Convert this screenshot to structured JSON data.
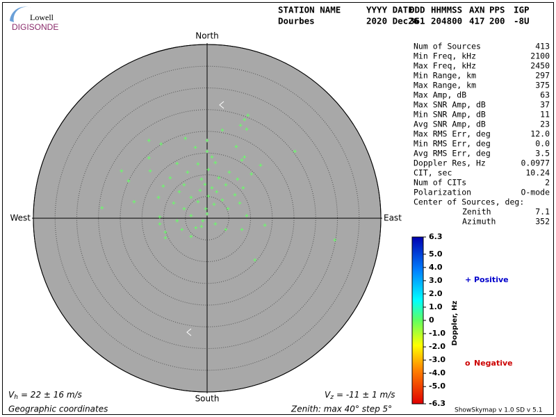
{
  "logo": {
    "line1": "Lowell",
    "line2": "DIGISONDE"
  },
  "header": {
    "labels": [
      "STATION NAME",
      "YYYY DATE",
      "DDD",
      "HHMMSS",
      "AXN",
      "PPS",
      "IGP"
    ],
    "values": [
      "Dourbes",
      "2020 Dec26",
      "361",
      "204800",
      "417",
      "200",
      "-8U"
    ]
  },
  "stats": [
    [
      "Num of Sources",
      "413"
    ],
    [
      "Min Freq, kHz",
      "2100"
    ],
    [
      "Max Freq, kHz",
      "2450"
    ],
    [
      "Min Range, km",
      "297"
    ],
    [
      "Max Range, km",
      "375"
    ],
    [
      "Max Amp, dB",
      "63"
    ],
    [
      "Max SNR Amp, dB",
      "37"
    ],
    [
      "Min SNR Amp, dB",
      "11"
    ],
    [
      "Avg SNR Amp, dB",
      "23"
    ],
    [
      "Max RMS Err, deg",
      "12.0"
    ],
    [
      "Min RMS Err, deg",
      "0.0"
    ],
    [
      "Avg RMS Err, deg",
      "3.5"
    ],
    [
      "Doppler Res, Hz",
      "0.0977"
    ],
    [
      "CIT, sec",
      "10.24"
    ],
    [
      "Num of CITs",
      "2"
    ],
    [
      "Polarization",
      "O-mode"
    ]
  ],
  "center": {
    "title": "Center of Sources, deg:",
    "rows": [
      [
        "Zenith",
        "7.1"
      ],
      [
        "Azimuth",
        "352"
      ]
    ]
  },
  "footer": {
    "vh": {
      "symbol": "V",
      "sub": "h",
      "text": "= 22 ± 16 m/s"
    },
    "vz": {
      "symbol": "V",
      "sub": "z",
      "text": "= -11 ± 1 m/s"
    },
    "coords": "Geographic coordinates",
    "zenith": "Zenith: max 40°  step 5°",
    "version": "ShowSkymap v 1.0   SD v 5.1"
  },
  "chart_data": {
    "type": "scatter",
    "compass": {
      "north": "North",
      "south": "South",
      "east": "East",
      "west": "West"
    },
    "xlim": [
      -40,
      40
    ],
    "ylim": [
      -40,
      40
    ],
    "rticks": [
      5,
      10,
      15,
      20,
      25,
      30,
      35,
      40
    ],
    "color": "#66ff66",
    "x": [
      9.4,
      8.6,
      7.7,
      3.5,
      9.1,
      -13.4,
      -5.0,
      0,
      -10.6,
      20.2,
      -2.7,
      6.7,
      0,
      -13.4,
      1.1,
      8,
      8.6,
      -6.9,
      -2.1,
      1.9,
      -19.7,
      12.3,
      -13.1,
      -4.5,
      0.3,
      5.1,
      10.2,
      -18.1,
      -8.5,
      -1.3,
      2.7,
      7,
      -10.1,
      -5.3,
      -0.5,
      1.1,
      4.3,
      8.3,
      -6.4,
      -1.6,
      2.2,
      6.4,
      -16.8,
      -11.2,
      -3.7,
      0.3,
      3.5,
      -7.7,
      -2.1,
      1.6,
      7.5,
      -24.2,
      -5.3,
      -0.3,
      4.8,
      -10.9,
      -3.7,
      0,
      9.1,
      -6.9,
      -1,
      13.3,
      -10.9,
      -1.3,
      1.9,
      8,
      -9.6,
      -2.6,
      4.3,
      -3.7,
      -9.6,
      29.4,
      11,
      -5.8
    ],
    "values": [
      23.7,
      22.7,
      21.4,
      20.3,
      20.5,
      17.9,
      18.4,
      17.9,
      17.1,
      15.4,
      16.3,
      16.5,
      15.4,
      13.9,
      14.1,
      13.4,
      14.1,
      12.6,
      12.5,
      12.8,
      10.9,
      12.2,
      10.9,
      10.6,
      11.2,
      10.6,
      10.2,
      8.6,
      9.3,
      9,
      9.3,
      9,
      7.4,
      7.7,
      7.8,
      7,
      7.7,
      7,
      6.1,
      6.4,
      6.1,
      5.4,
      3.8,
      4.8,
      4.8,
      5.1,
      4.2,
      3.5,
      3.8,
      3.2,
      3.5,
      2.4,
      2.2,
      2.2,
      2.2,
      0.3,
      0.6,
      1,
      0.6,
      -0.6,
      -0.6,
      -1.6,
      -1.3,
      -1.9,
      -1.3,
      -2.6,
      -3.2,
      -2.2,
      -2.6,
      -4.2,
      -4.5,
      -5,
      -9.6,
      -2.6
    ],
    "colorbar": {
      "label": "Doppler, Hz",
      "clim": [
        -6.3,
        6.3
      ],
      "ticks": [
        6.3,
        {
          "value": 5,
          "label": "5.0"
        },
        {
          "value": 4,
          "label": "4.0"
        },
        {
          "value": 3,
          "label": "3.0"
        },
        {
          "value": 2,
          "label": "2.0"
        },
        {
          "value": 1,
          "label": "1.0"
        },
        0,
        {
          "value": -1,
          "label": "-1.0"
        },
        {
          "value": -2,
          "label": "-2.0"
        },
        {
          "value": -3,
          "label": "-3.0"
        },
        {
          "value": -4,
          "label": "-4.0"
        },
        {
          "value": -5,
          "label": "-5.0"
        },
        -6.3
      ]
    },
    "legend": [
      {
        "symbol": "+",
        "name": "Positive",
        "color": "#0000cc"
      },
      {
        "symbol": "o",
        "name": "Negative",
        "color": "#cc0000"
      }
    ]
  }
}
